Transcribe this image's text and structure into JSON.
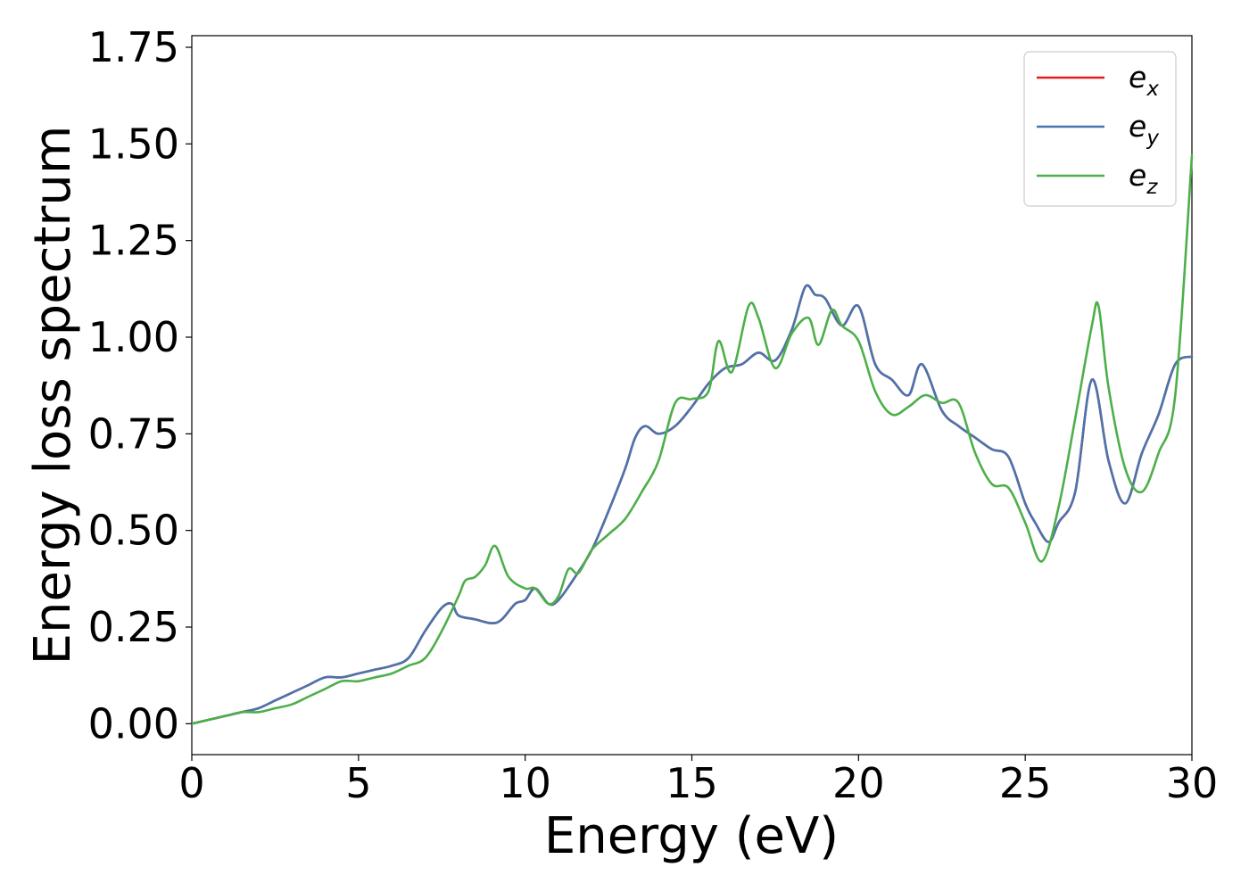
{
  "chart_data": {
    "type": "line",
    "title": "",
    "xlabel": "Energy (eV)",
    "ylabel": "Energy loss spectrum",
    "xlim": [
      0,
      30
    ],
    "ylim": [
      -0.08,
      1.78
    ],
    "xticks": [
      0,
      5,
      10,
      15,
      20,
      25,
      30
    ],
    "yticks": [
      0.0,
      0.25,
      0.5,
      0.75,
      1.0,
      1.25,
      1.5,
      1.75
    ],
    "xtick_labels": [
      "0",
      "5",
      "10",
      "15",
      "20",
      "25",
      "30"
    ],
    "ytick_labels": [
      "0.00",
      "0.25",
      "0.50",
      "0.75",
      "1.00",
      "1.25",
      "1.50",
      "1.75"
    ],
    "grid": false,
    "legend_position": "top-right",
    "series": [
      {
        "name": "e_x",
        "legend": {
          "base": "e",
          "sub": "x"
        },
        "color": "#e41a1c",
        "x": [
          0,
          0.5,
          1,
          1.5,
          2,
          2.5,
          3,
          3.5,
          4,
          4.5,
          5,
          5.5,
          6,
          6.5,
          7,
          7.5,
          7.8,
          8,
          8.5,
          9,
          9.3,
          9.7,
          10,
          10.3,
          10.7,
          11,
          11.5,
          12,
          12.5,
          13,
          13.3,
          13.6,
          14,
          14.5,
          15,
          15.5,
          16,
          16.5,
          17,
          17.5,
          18,
          18.4,
          18.7,
          19,
          19.5,
          20,
          20.5,
          21,
          21.5,
          21.9,
          22.5,
          23,
          23.5,
          24,
          24.5,
          25,
          25.3,
          25.7,
          26,
          26.5,
          27,
          27.5,
          28,
          28.5,
          29,
          29.5,
          30
        ],
        "y": [
          0.0,
          0.01,
          0.02,
          0.03,
          0.04,
          0.06,
          0.08,
          0.1,
          0.12,
          0.12,
          0.13,
          0.14,
          0.15,
          0.17,
          0.24,
          0.3,
          0.31,
          0.28,
          0.27,
          0.26,
          0.27,
          0.31,
          0.32,
          0.35,
          0.31,
          0.32,
          0.38,
          0.45,
          0.55,
          0.66,
          0.74,
          0.77,
          0.75,
          0.77,
          0.82,
          0.88,
          0.92,
          0.93,
          0.96,
          0.94,
          1.02,
          1.13,
          1.11,
          1.1,
          1.03,
          1.08,
          0.93,
          0.89,
          0.85,
          0.93,
          0.81,
          0.77,
          0.74,
          0.71,
          0.69,
          0.57,
          0.52,
          0.47,
          0.52,
          0.6,
          0.89,
          0.68,
          0.57,
          0.7,
          0.8,
          0.93,
          0.95
        ]
      },
      {
        "name": "e_y",
        "legend": {
          "base": "e",
          "sub": "y"
        },
        "color": "#4a74ad",
        "x": [
          0,
          0.5,
          1,
          1.5,
          2,
          2.5,
          3,
          3.5,
          4,
          4.5,
          5,
          5.5,
          6,
          6.5,
          7,
          7.5,
          7.8,
          8,
          8.5,
          9,
          9.3,
          9.7,
          10,
          10.3,
          10.7,
          11,
          11.5,
          12,
          12.5,
          13,
          13.3,
          13.6,
          14,
          14.5,
          15,
          15.5,
          16,
          16.5,
          17,
          17.5,
          18,
          18.4,
          18.7,
          19,
          19.5,
          20,
          20.5,
          21,
          21.5,
          21.9,
          22.5,
          23,
          23.5,
          24,
          24.5,
          25,
          25.3,
          25.7,
          26,
          26.5,
          27,
          27.5,
          28,
          28.5,
          29,
          29.5,
          30
        ],
        "y": [
          0.0,
          0.01,
          0.02,
          0.03,
          0.04,
          0.06,
          0.08,
          0.1,
          0.12,
          0.12,
          0.13,
          0.14,
          0.15,
          0.17,
          0.24,
          0.3,
          0.31,
          0.28,
          0.27,
          0.26,
          0.27,
          0.31,
          0.32,
          0.35,
          0.31,
          0.32,
          0.38,
          0.45,
          0.55,
          0.66,
          0.74,
          0.77,
          0.75,
          0.77,
          0.82,
          0.88,
          0.92,
          0.93,
          0.96,
          0.94,
          1.02,
          1.13,
          1.11,
          1.1,
          1.03,
          1.08,
          0.93,
          0.89,
          0.85,
          0.93,
          0.81,
          0.77,
          0.74,
          0.71,
          0.69,
          0.57,
          0.52,
          0.47,
          0.52,
          0.6,
          0.89,
          0.68,
          0.57,
          0.7,
          0.8,
          0.93,
          0.95
        ]
      },
      {
        "name": "e_z",
        "legend": {
          "base": "e",
          "sub": "z"
        },
        "color": "#4daf4a",
        "x": [
          0,
          0.5,
          1,
          1.5,
          2,
          2.5,
          3,
          3.5,
          4,
          4.5,
          5,
          5.5,
          6,
          6.5,
          7,
          7.5,
          8,
          8.2,
          8.5,
          8.8,
          9.1,
          9.5,
          10,
          10.3,
          10.7,
          11,
          11.3,
          11.6,
          12,
          12.5,
          13,
          13.5,
          14,
          14.5,
          15,
          15.5,
          15.8,
          16.2,
          16.7,
          17,
          17.5,
          18,
          18.5,
          18.8,
          19.2,
          19.5,
          20,
          20.5,
          21,
          21.5,
          22,
          22.5,
          23,
          23.5,
          24,
          24.5,
          25,
          25.5,
          26,
          26.5,
          27,
          27.2,
          27.5,
          28,
          28.5,
          29,
          29.5,
          30
        ],
        "y": [
          0.0,
          0.01,
          0.02,
          0.03,
          0.03,
          0.04,
          0.05,
          0.07,
          0.09,
          0.11,
          0.11,
          0.12,
          0.13,
          0.15,
          0.17,
          0.24,
          0.33,
          0.37,
          0.38,
          0.41,
          0.46,
          0.38,
          0.35,
          0.35,
          0.31,
          0.33,
          0.4,
          0.39,
          0.45,
          0.49,
          0.53,
          0.6,
          0.68,
          0.83,
          0.84,
          0.86,
          0.99,
          0.91,
          1.08,
          1.05,
          0.92,
          1.01,
          1.05,
          0.98,
          1.07,
          1.03,
          0.99,
          0.86,
          0.8,
          0.82,
          0.85,
          0.83,
          0.83,
          0.7,
          0.62,
          0.61,
          0.52,
          0.42,
          0.56,
          0.79,
          1.03,
          1.08,
          0.87,
          0.66,
          0.6,
          0.7,
          0.85,
          1.47
        ]
      }
    ]
  }
}
